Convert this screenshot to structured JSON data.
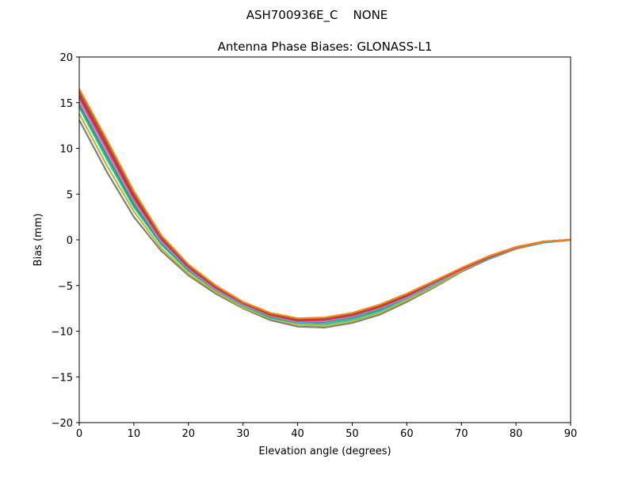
{
  "chart_data": {
    "type": "line",
    "suptitle": "ASH700936E_C    NONE",
    "title": "Antenna Phase Biases: GLONASS-L1",
    "xlabel": "Elevation angle (degrees)",
    "ylabel": "Bias (mm)",
    "xlim": [
      0,
      90
    ],
    "ylim": [
      -20,
      20
    ],
    "xticks": [
      0,
      10,
      20,
      30,
      40,
      50,
      60,
      70,
      80,
      90
    ],
    "yticks": [
      -20,
      -15,
      -10,
      -5,
      0,
      5,
      10,
      15,
      20
    ],
    "ytick_labels": [
      "−20",
      "−15",
      "−10",
      "−5",
      "0",
      "5",
      "10",
      "15",
      "20"
    ],
    "grid": false,
    "x": [
      0,
      5,
      10,
      15,
      20,
      25,
      30,
      35,
      40,
      45,
      50,
      55,
      60,
      65,
      70,
      75,
      80,
      85,
      90
    ],
    "series": [
      {
        "color": "#7f7f7f",
        "values": [
          13.1,
          7.5,
          2.5,
          -1.2,
          -3.9,
          -5.9,
          -7.5,
          -8.8,
          -9.5,
          -9.6,
          -9.1,
          -8.2,
          -6.8,
          -5.2,
          -3.5,
          -2.1,
          -1.0,
          -0.3,
          0
        ]
      },
      {
        "color": "#bcbd22",
        "values": [
          13.8,
          8.2,
          3.1,
          -0.9,
          -3.7,
          -5.7,
          -7.4,
          -8.6,
          -9.3,
          -9.4,
          -8.9,
          -8.0,
          -6.6,
          -5.1,
          -3.4,
          -2.0,
          -1.0,
          -0.3,
          0
        ]
      },
      {
        "color": "#17becf",
        "values": [
          14.5,
          8.9,
          3.6,
          -0.5,
          -3.4,
          -5.5,
          -7.2,
          -8.5,
          -9.1,
          -9.2,
          -8.7,
          -7.8,
          -6.4,
          -4.9,
          -3.3,
          -2.0,
          -0.9,
          -0.3,
          0
        ]
      },
      {
        "color": "#2ca02c",
        "values": [
          14.8,
          9.3,
          3.9,
          -0.3,
          -3.3,
          -5.4,
          -7.1,
          -8.4,
          -9.0,
          -9.0,
          -8.5,
          -7.6,
          -6.3,
          -4.8,
          -3.3,
          -1.9,
          -0.9,
          -0.2,
          0
        ]
      },
      {
        "color": "#e377c2",
        "values": [
          15.1,
          9.6,
          4.2,
          -0.2,
          -3.2,
          -5.4,
          -7.1,
          -8.3,
          -9.0,
          -8.9,
          -8.4,
          -7.5,
          -6.3,
          -4.8,
          -3.3,
          -1.9,
          -0.9,
          -0.2,
          0
        ]
      },
      {
        "color": "#9467bd",
        "values": [
          15.5,
          10.0,
          4.5,
          0.0,
          -3.1,
          -5.3,
          -7.0,
          -8.2,
          -8.9,
          -8.8,
          -8.3,
          -7.4,
          -6.2,
          -4.7,
          -3.2,
          -1.9,
          -0.9,
          -0.2,
          0
        ]
      },
      {
        "color": "#d62728",
        "values": [
          15.8,
          10.3,
          4.7,
          0.2,
          -2.9,
          -5.2,
          -6.9,
          -8.2,
          -8.8,
          -8.7,
          -8.2,
          -7.3,
          -6.1,
          -4.6,
          -3.2,
          -1.9,
          -0.8,
          -0.2,
          0
        ]
      },
      {
        "color": "#8c564b",
        "values": [
          16.2,
          10.7,
          5.0,
          0.3,
          -2.8,
          -5.1,
          -6.9,
          -8.1,
          -8.7,
          -8.6,
          -8.1,
          -7.2,
          -6.0,
          -4.6,
          -3.1,
          -1.8,
          -0.8,
          -0.2,
          0
        ]
      },
      {
        "color": "#ff7f0e",
        "values": [
          16.5,
          11.0,
          5.3,
          0.5,
          -2.7,
          -5.0,
          -6.8,
          -8.0,
          -8.6,
          -8.5,
          -8.0,
          -7.1,
          -5.9,
          -4.5,
          -3.1,
          -1.8,
          -0.8,
          -0.2,
          0
        ]
      }
    ]
  }
}
